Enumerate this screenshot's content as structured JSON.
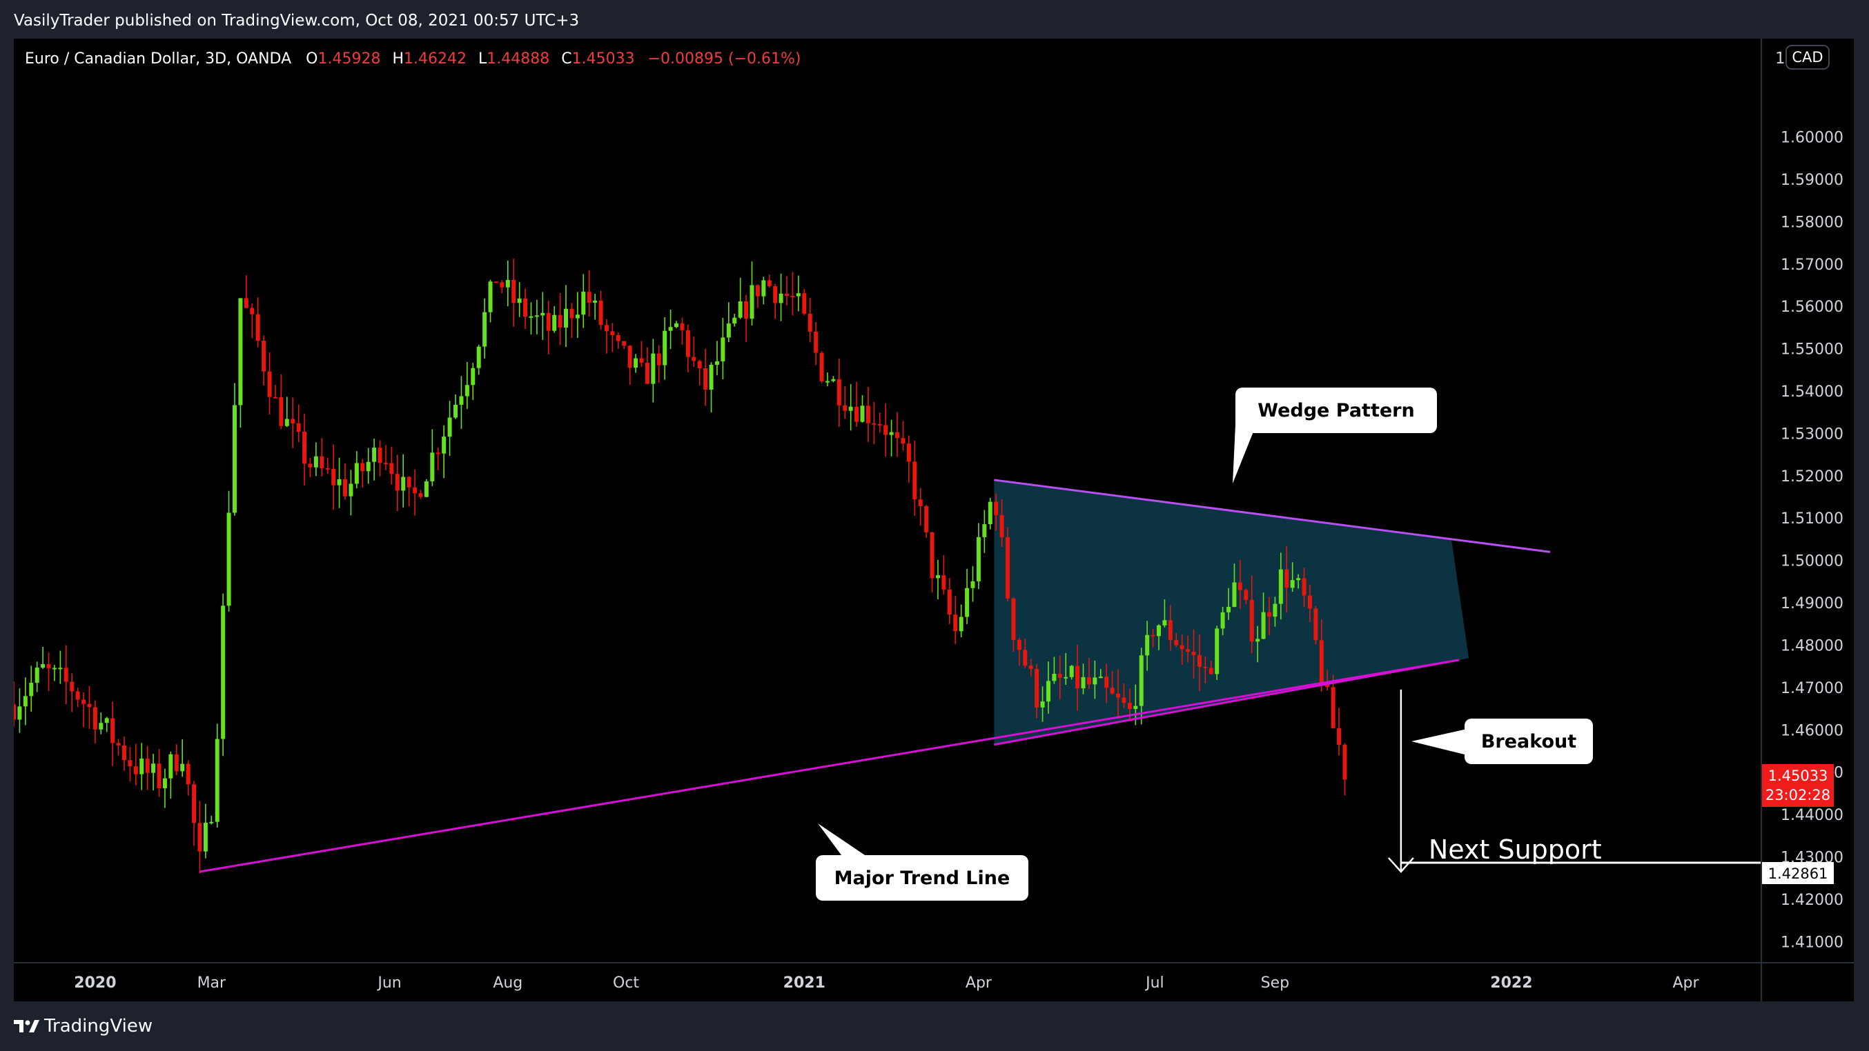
{
  "header": {
    "published_line": "VasilyTrader published on TradingView.com, Oct 08, 2021 00:57 UTC+3"
  },
  "legend": {
    "symbol": "Euro / Canadian Dollar, 3D, OANDA",
    "o_label": "O",
    "o_value": "1.45928",
    "h_label": "H",
    "h_value": "1.46242",
    "l_label": "L",
    "l_value": "1.44888",
    "c_label": "C",
    "c_value": "1.45033",
    "change": "−0.00895 (−0.61%)"
  },
  "currency_badge": "CAD",
  "price_axis_partial_label": "1.",
  "price_tag": {
    "price": "1.45033",
    "countdown": "23:02:28"
  },
  "support_tag": "1.42861",
  "annotations": {
    "wedge": "Wedge Pattern",
    "breakout": "Breakout",
    "trend": "Major Trend Line",
    "support": "Next Support"
  },
  "footer": {
    "brand": "TradingView"
  },
  "colors": {
    "up": "#4caf50",
    "up_bright": "#66e01f",
    "down": "#e8160c",
    "wedge_line": "#b84ff0",
    "trend_line": "#d60fd6",
    "wedge_fill": "#0c3848",
    "price_tag": "#f01b1b"
  },
  "chart_data": {
    "type": "candlestick",
    "symbol": "EURCAD",
    "timeframe": "3D",
    "x_ticks": [
      "2020",
      "Mar",
      "Jun",
      "Aug",
      "Oct",
      "2021",
      "Apr",
      "Jul",
      "Sep",
      "2022",
      "Apr"
    ],
    "y_ticks": [
      "1.41000",
      "1.42000",
      "1.43000",
      "1.44000",
      "1.45000",
      "1.46000",
      "1.47000",
      "1.48000",
      "1.49000",
      "1.50000",
      "1.51000",
      "1.52000",
      "1.53000",
      "1.54000",
      "1.55000",
      "1.56000",
      "1.57000",
      "1.58000",
      "1.59000",
      "1.60000"
    ],
    "ylim": [
      1.405,
      1.618
    ],
    "last_close": 1.45033,
    "next_support": 1.42861,
    "trend_line": {
      "from": [
        "2020-02-24",
        1.4265
      ],
      "to": [
        "2021-12-05",
        1.4765
      ]
    },
    "wedge_upper": {
      "from": [
        "2021-04-09",
        1.519
      ],
      "to": [
        "2022-01-21",
        1.502
      ]
    },
    "wedge_lower": {
      "from": [
        "2021-04-09",
        1.4565
      ],
      "to": [
        "2021-12-05",
        1.4765
      ]
    },
    "path": [
      [
        "2019-11-20",
        1.466
      ],
      [
        "2019-12-05",
        1.474
      ],
      [
        "2019-12-20",
        1.47
      ],
      [
        "2020-01-05",
        1.461
      ],
      [
        "2020-01-20",
        1.452
      ],
      [
        "2020-02-03",
        1.448
      ],
      [
        "2020-02-15",
        1.455
      ],
      [
        "2020-02-24",
        1.4285
      ],
      [
        "2020-03-02",
        1.444
      ],
      [
        "2020-03-09",
        1.505
      ],
      [
        "2020-03-16",
        1.562
      ],
      [
        "2020-03-24",
        1.553
      ],
      [
        "2020-04-03",
        1.537
      ],
      [
        "2020-04-20",
        1.523
      ],
      [
        "2020-05-10",
        1.517
      ],
      [
        "2020-05-28",
        1.527
      ],
      [
        "2020-06-12",
        1.513
      ],
      [
        "2020-06-28",
        1.53
      ],
      [
        "2020-07-12",
        1.545
      ],
      [
        "2020-07-26",
        1.567
      ],
      [
        "2020-08-06",
        1.56
      ],
      [
        "2020-08-24",
        1.554
      ],
      [
        "2020-09-10",
        1.563
      ],
      [
        "2020-09-25",
        1.55
      ],
      [
        "2020-10-10",
        1.543
      ],
      [
        "2020-10-28",
        1.556
      ],
      [
        "2020-11-10",
        1.54
      ],
      [
        "2020-11-25",
        1.555
      ],
      [
        "2020-12-10",
        1.566
      ],
      [
        "2020-12-28",
        1.561
      ],
      [
        "2021-01-10",
        1.545
      ],
      [
        "2021-01-25",
        1.537
      ],
      [
        "2021-02-10",
        1.533
      ],
      [
        "2021-02-25",
        1.521
      ],
      [
        "2021-03-08",
        1.498
      ],
      [
        "2021-03-20",
        1.483
      ],
      [
        "2021-03-28",
        1.495
      ],
      [
        "2021-04-09",
        1.517
      ],
      [
        "2021-04-18",
        1.485
      ],
      [
        "2021-05-01",
        1.468
      ],
      [
        "2021-05-15",
        1.472
      ],
      [
        "2021-06-01",
        1.47
      ],
      [
        "2021-06-18",
        1.464
      ],
      [
        "2021-07-01",
        1.486
      ],
      [
        "2021-07-15",
        1.48
      ],
      [
        "2021-07-28",
        1.473
      ],
      [
        "2021-08-10",
        1.495
      ],
      [
        "2021-08-22",
        1.482
      ],
      [
        "2021-09-05",
        1.497
      ],
      [
        "2021-09-15",
        1.492
      ],
      [
        "2021-09-22",
        1.48
      ],
      [
        "2021-09-30",
        1.462
      ],
      [
        "2021-10-08",
        1.45033
      ]
    ]
  }
}
